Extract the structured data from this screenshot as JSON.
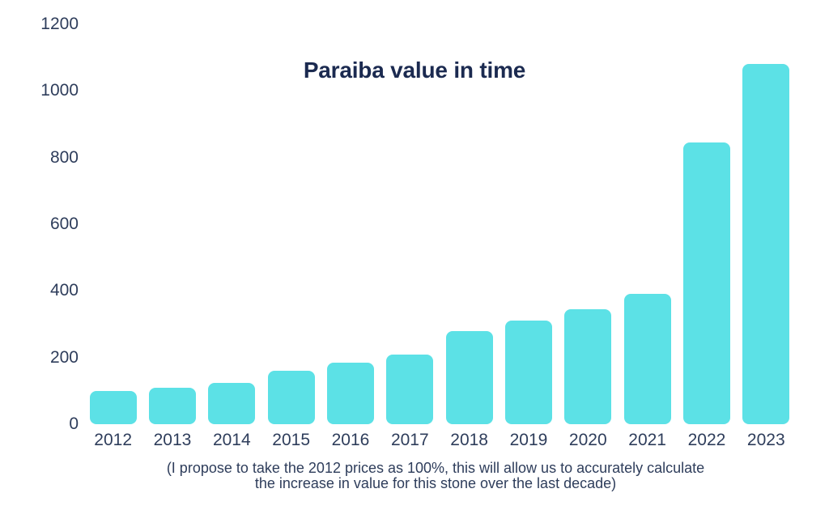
{
  "page": {
    "background_color": "#FFFFFF"
  },
  "chart_data": {
    "type": "bar",
    "title": "Paraiba value in time",
    "categories": [
      "2012",
      "2013",
      "2014",
      "2015",
      "2016",
      "2017",
      "2018",
      "2019",
      "2020",
      "2021",
      "2022",
      "2023"
    ],
    "values": [
      100,
      110,
      125,
      160,
      185,
      210,
      280,
      310,
      345,
      390,
      845,
      1080
    ],
    "xlabel": "",
    "ylabel": "",
    "ylim": [
      0,
      1200
    ],
    "yticks": [
      0,
      200,
      400,
      600,
      800,
      1000,
      1200
    ],
    "grid": false,
    "legend": false,
    "bar_color": "#5CE1E6",
    "title_color": "#1B2A50",
    "axis_label_color": "#2E3D5B",
    "footnote_color": "#2E3D5B",
    "footnote_lines": [
      "(I propose to take the 2012 prices as 100%, this will allow us to accurately calculate",
      "the increase in value for this stone over the last decade)"
    ]
  }
}
